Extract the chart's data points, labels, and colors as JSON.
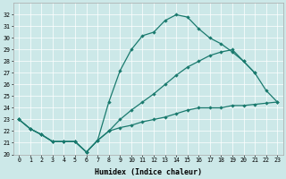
{
  "xlabel": "Humidex (Indice chaleur)",
  "bg_color": "#cce8e8",
  "line_color": "#1a7a6e",
  "xlim": [
    -0.5,
    23.5
  ],
  "ylim": [
    20,
    33
  ],
  "yticks": [
    20,
    21,
    22,
    23,
    24,
    25,
    26,
    27,
    28,
    29,
    30,
    31,
    32
  ],
  "xticks": [
    0,
    1,
    2,
    3,
    4,
    5,
    6,
    7,
    8,
    9,
    10,
    11,
    12,
    13,
    14,
    15,
    16,
    17,
    18,
    19,
    20,
    21,
    22,
    23
  ],
  "line_upper_x": [
    0,
    1,
    2,
    3,
    4,
    5,
    6,
    7,
    8,
    9,
    10,
    11,
    12,
    13,
    14,
    15,
    16,
    17,
    18,
    19,
    20,
    21
  ],
  "line_upper_y": [
    23.0,
    22.2,
    21.7,
    21.1,
    21.1,
    21.1,
    20.2,
    21.2,
    24.5,
    27.2,
    29.0,
    30.2,
    30.5,
    31.5,
    32.0,
    31.8,
    30.8,
    30.0,
    29.5,
    28.8,
    28.0,
    27.0
  ],
  "line_mid_x": [
    0,
    1,
    2,
    3,
    4,
    5,
    6,
    7,
    8,
    9,
    10,
    11,
    12,
    13,
    14,
    15,
    16,
    17,
    18,
    19,
    20,
    21,
    22,
    23
  ],
  "line_mid_y": [
    23.0,
    22.2,
    21.7,
    21.1,
    21.1,
    21.1,
    20.2,
    21.2,
    22.0,
    23.0,
    23.8,
    24.5,
    25.2,
    26.0,
    26.8,
    27.5,
    28.0,
    28.5,
    28.8,
    29.0,
    28.0,
    27.0,
    25.5,
    24.5
  ],
  "line_lower_x": [
    0,
    1,
    2,
    3,
    4,
    5,
    6,
    7,
    8,
    9,
    10,
    11,
    12,
    13,
    14,
    15,
    16,
    17,
    18,
    19,
    20,
    21,
    22,
    23
  ],
  "line_lower_y": [
    23.0,
    22.2,
    21.7,
    21.1,
    21.1,
    21.1,
    20.2,
    21.2,
    22.0,
    22.3,
    22.5,
    22.8,
    23.0,
    23.2,
    23.5,
    23.8,
    24.0,
    24.0,
    24.0,
    24.2,
    24.2,
    24.3,
    24.4,
    24.5
  ]
}
